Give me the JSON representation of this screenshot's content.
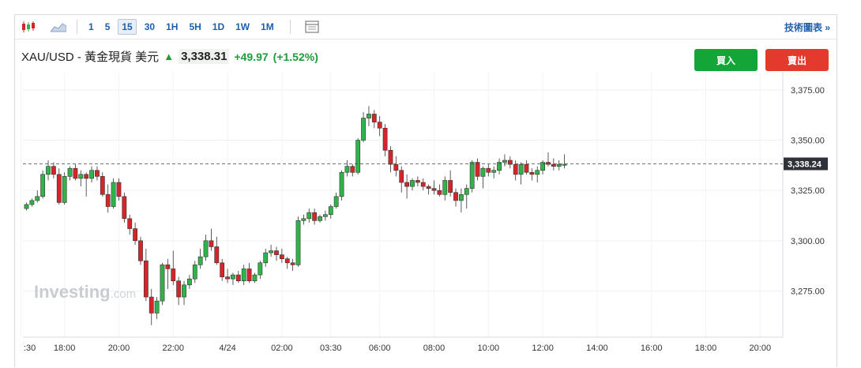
{
  "toolbar": {
    "timeframes": [
      "1",
      "5",
      "15",
      "30",
      "1H",
      "5H",
      "1D",
      "1W",
      "1M"
    ],
    "active_timeframe": "15",
    "technical_link": "技術圖表 »"
  },
  "header": {
    "instrument": "XAU/USD - 黃金現貨 美元",
    "last_price": "3,338.31",
    "change": "+49.97",
    "change_pct": "(+1.52%)"
  },
  "buttons": {
    "buy": "買入",
    "sell": "賣出"
  },
  "watermark": {
    "brand": "Investing",
    "suffix": ".com"
  },
  "colors": {
    "up": "#2fb44a",
    "down": "#d7242b",
    "accent": "#1f5faa"
  },
  "chart_data": {
    "type": "candlestick",
    "interval": "15 minutes",
    "y_ticks": [
      "3,375.00",
      "3,350.00",
      "3,325.00",
      "3,300.00",
      "3,275.00"
    ],
    "y_tick_values": [
      3375,
      3350,
      3325,
      3300,
      3275
    ],
    "ylim": [
      3252,
      3384
    ],
    "x_ticks": [
      ":30",
      "18:00",
      "20:00",
      "22:00",
      "4/24",
      "02:00",
      "03:30",
      "06:00",
      "08:00",
      "10:00",
      "12:00",
      "14:00",
      "16:00",
      "18:00",
      "20:00"
    ],
    "x_tick_index": [
      -1,
      7,
      17,
      27,
      37,
      47,
      56,
      65,
      75,
      85,
      95,
      105,
      115,
      125,
      135
    ],
    "current_price_label": "3,338.24",
    "current_price": 3338.24,
    "grid": true,
    "candles": [
      [
        3316,
        3319,
        3315,
        3318
      ],
      [
        3318,
        3321,
        3317,
        3320
      ],
      [
        3320,
        3325,
        3319,
        3322
      ],
      [
        3322,
        3335,
        3321,
        3333
      ],
      [
        3333,
        3340,
        3330,
        3337
      ],
      [
        3337,
        3339,
        3331,
        3333
      ],
      [
        3333,
        3336,
        3318,
        3319
      ],
      [
        3319,
        3334,
        3318,
        3332
      ],
      [
        3332,
        3337,
        3330,
        3336
      ],
      [
        3336,
        3338,
        3330,
        3331
      ],
      [
        3331,
        3335,
        3327,
        3333
      ],
      [
        3333,
        3334,
        3322,
        3331
      ],
      [
        3331,
        3337,
        3329,
        3335
      ],
      [
        3335,
        3337,
        3330,
        3332
      ],
      [
        3332,
        3334,
        3322,
        3323
      ],
      [
        3323,
        3328,
        3314,
        3317
      ],
      [
        3317,
        3331,
        3316,
        3329
      ],
      [
        3329,
        3331,
        3320,
        3322
      ],
      [
        3322,
        3324,
        3309,
        3311
      ],
      [
        3311,
        3313,
        3303,
        3306
      ],
      [
        3306,
        3309,
        3298,
        3300
      ],
      [
        3300,
        3302,
        3288,
        3290
      ],
      [
        3290,
        3296,
        3270,
        3272
      ],
      [
        3272,
        3276,
        3258,
        3264
      ],
      [
        3264,
        3272,
        3261,
        3270
      ],
      [
        3270,
        3289,
        3268,
        3288
      ],
      [
        3288,
        3291,
        3276,
        3286
      ],
      [
        3286,
        3295,
        3278,
        3280
      ],
      [
        3280,
        3282,
        3268,
        3272
      ],
      [
        3272,
        3280,
        3268,
        3278
      ],
      [
        3278,
        3283,
        3276,
        3281
      ],
      [
        3281,
        3290,
        3279,
        3288
      ],
      [
        3288,
        3296,
        3286,
        3292
      ],
      [
        3292,
        3303,
        3290,
        3300
      ],
      [
        3300,
        3306,
        3295,
        3297
      ],
      [
        3297,
        3302,
        3288,
        3289
      ],
      [
        3289,
        3291,
        3280,
        3282
      ],
      [
        3282,
        3286,
        3279,
        3281
      ],
      [
        3281,
        3284,
        3278,
        3283
      ],
      [
        3283,
        3285,
        3279,
        3280
      ],
      [
        3280,
        3288,
        3278,
        3286
      ],
      [
        3286,
        3289,
        3279,
        3280
      ],
      [
        3280,
        3284,
        3279,
        3283
      ],
      [
        3283,
        3290,
        3281,
        3289
      ],
      [
        3289,
        3296,
        3287,
        3294
      ],
      [
        3294,
        3298,
        3292,
        3295
      ],
      [
        3295,
        3297,
        3290,
        3293
      ],
      [
        3293,
        3296,
        3289,
        3291
      ],
      [
        3291,
        3292,
        3286,
        3289
      ],
      [
        3289,
        3291,
        3285,
        3288
      ],
      [
        3288,
        3312,
        3287,
        3310
      ],
      [
        3310,
        3313,
        3308,
        3311
      ],
      [
        3311,
        3316,
        3309,
        3314
      ],
      [
        3314,
        3316,
        3308,
        3310
      ],
      [
        3310,
        3313,
        3309,
        3312
      ],
      [
        3312,
        3315,
        3310,
        3313
      ],
      [
        3313,
        3318,
        3311,
        3317
      ],
      [
        3317,
        3324,
        3316,
        3322
      ],
      [
        3322,
        3335,
        3320,
        3334
      ],
      [
        3334,
        3340,
        3332,
        3337
      ],
      [
        3337,
        3338,
        3332,
        3334
      ],
      [
        3334,
        3351,
        3333,
        3350
      ],
      [
        3350,
        3364,
        3349,
        3361
      ],
      [
        3361,
        3367,
        3357,
        3363
      ],
      [
        3363,
        3365,
        3356,
        3359
      ],
      [
        3359,
        3362,
        3352,
        3356
      ],
      [
        3356,
        3358,
        3342,
        3345
      ],
      [
        3345,
        3347,
        3334,
        3338
      ],
      [
        3338,
        3342,
        3332,
        3335
      ],
      [
        3335,
        3337,
        3324,
        3329
      ],
      [
        3329,
        3333,
        3321,
        3327
      ],
      [
        3327,
        3331,
        3325,
        3330
      ],
      [
        3330,
        3332,
        3327,
        3329
      ],
      [
        3329,
        3331,
        3325,
        3327
      ],
      [
        3327,
        3328,
        3323,
        3326
      ],
      [
        3326,
        3330,
        3323,
        3325
      ],
      [
        3325,
        3328,
        3322,
        3323
      ],
      [
        3323,
        3332,
        3320,
        3330
      ],
      [
        3330,
        3335,
        3322,
        3324
      ],
      [
        3324,
        3326,
        3317,
        3320
      ],
      [
        3320,
        3326,
        3314,
        3323
      ],
      [
        3323,
        3328,
        3316,
        3326
      ],
      [
        3326,
        3340,
        3324,
        3339
      ],
      [
        3339,
        3341,
        3330,
        3332
      ],
      [
        3332,
        3337,
        3326,
        3336
      ],
      [
        3336,
        3338,
        3332,
        3334
      ],
      [
        3334,
        3337,
        3331,
        3335
      ],
      [
        3335,
        3341,
        3333,
        3339
      ],
      [
        3339,
        3343,
        3337,
        3340
      ],
      [
        3340,
        3342,
        3336,
        3338
      ],
      [
        3338,
        3340,
        3330,
        3333
      ],
      [
        3333,
        3339,
        3328,
        3338
      ],
      [
        3338,
        3340,
        3333,
        3334
      ],
      [
        3334,
        3336,
        3330,
        3333
      ],
      [
        3333,
        3337,
        3329,
        3335
      ],
      [
        3335,
        3340,
        3333,
        3339
      ],
      [
        3339,
        3344,
        3337,
        3338
      ],
      [
        3338,
        3341,
        3335,
        3337
      ],
      [
        3337,
        3340,
        3335,
        3338
      ],
      [
        3338,
        3343,
        3336,
        3338
      ]
    ]
  }
}
